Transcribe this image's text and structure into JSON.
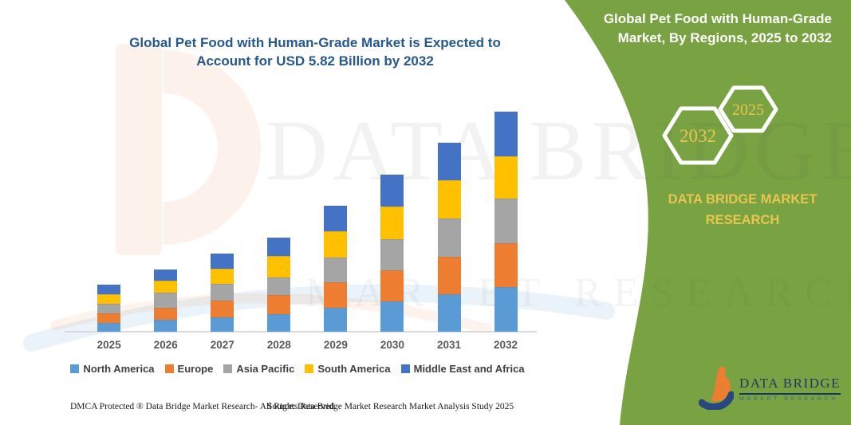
{
  "header": {
    "left_title_line1": "Global Pet Food with Human-Grade Market is Expected to",
    "left_title_line2": "Account for USD 5.82 Billion by 2032",
    "right_title_line1": "Global Pet Food with Human-Grade",
    "right_title_line2": "Market, By Regions, 2025 to 2032"
  },
  "badges": {
    "back_year": "2032",
    "front_year": "2025"
  },
  "brand_panel": {
    "line1": "DATA BRIDGE MARKET",
    "line2": "RESEARCH"
  },
  "watermark": {
    "line1": "DATA BRIDGE",
    "line2": "MARKET RESEARCH"
  },
  "logo": {
    "name": "DATA BRIDGE",
    "sub": "MARKET RESEARCH"
  },
  "footer": {
    "left": "DMCA Protected ® Data Bridge Market Research-  All Rights Reserved.",
    "source": "Source: Data Bridge Market Research  Market Analysis Study 2025"
  },
  "colors": {
    "panel_green": "#79A342",
    "title_blue": "#26588C",
    "badge_yellow": "#E9C54F",
    "logo_navy": "#1F3864",
    "axis_label_gray": "#595959"
  },
  "chart_data": {
    "type": "bar",
    "stacked": true,
    "unit": "USD Billion",
    "title": "Global Pet Food with Human-Grade Market, By Regions, 2025 to 2032",
    "categories": [
      "2025",
      "2026",
      "2027",
      "2028",
      "2029",
      "2030",
      "2031",
      "2032"
    ],
    "series": [
      {
        "name": "North America",
        "color": "#5B9BD5",
        "values": [
          0.23,
          0.32,
          0.39,
          0.47,
          0.63,
          0.81,
          0.99,
          1.18
        ]
      },
      {
        "name": "Europe",
        "color": "#ED7D31",
        "values": [
          0.25,
          0.32,
          0.44,
          0.51,
          0.67,
          0.81,
          0.99,
          1.15
        ]
      },
      {
        "name": "Asia Pacific",
        "color": "#A5A5A5",
        "values": [
          0.26,
          0.39,
          0.44,
          0.46,
          0.67,
          0.83,
          1.02,
          1.19
        ]
      },
      {
        "name": "South America",
        "color": "#FFC000",
        "values": [
          0.25,
          0.32,
          0.39,
          0.56,
          0.68,
          0.86,
          1.0,
          1.12
        ]
      },
      {
        "name": "Middle East and Africa",
        "color": "#4472C4",
        "values": [
          0.25,
          0.3,
          0.41,
          0.48,
          0.68,
          0.83,
          0.99,
          1.18
        ]
      }
    ],
    "totals": [
      1.24,
      1.65,
      2.07,
      2.48,
      3.33,
      4.14,
      4.99,
      5.82
    ],
    "ylim": [
      0,
      6
    ],
    "grid": false,
    "legend_position": "bottom"
  }
}
